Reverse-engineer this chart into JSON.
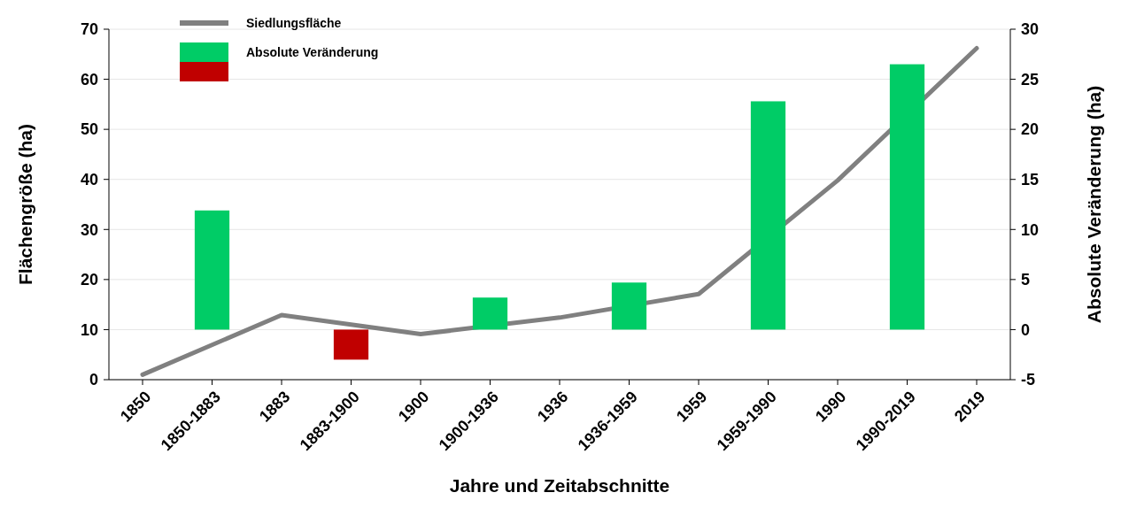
{
  "chart_data": {
    "type": "bar",
    "xlabel": "Jahre und Zeitabschnitte",
    "ylabel": "Flächengröße (ha)",
    "y2label": "Absolute  Veränderung (ha)",
    "categories": [
      "1850",
      "1850-1883",
      "1883",
      "1883-1900",
      "1900",
      "1900-1936",
      "1936",
      "1936-1959",
      "1959",
      "1959-1990",
      "1990",
      "1990-2019",
      "2019"
    ],
    "series": [
      {
        "name": "Siedlungsfläche",
        "type": "line",
        "color": "#808080",
        "values": [
          1.0,
          null,
          12.9,
          null,
          9.1,
          null,
          12.4,
          null,
          17.1,
          null,
          39.8,
          null,
          66.2
        ]
      },
      {
        "name": "Absolute Veränderung",
        "axis": "y2",
        "color": "#00cc66",
        "colors": [
          null,
          "#00cc66",
          null,
          "#c00000",
          null,
          "#00cc66",
          null,
          "#00cc66",
          null,
          "#00cc66",
          null,
          "#00cc66",
          null
        ],
        "values": [
          null,
          11.9,
          null,
          -3.0,
          null,
          3.2,
          null,
          4.7,
          null,
          22.8,
          null,
          26.5,
          null
        ]
      }
    ],
    "ylim": [
      0,
      70
    ],
    "yticks": [
      0,
      10,
      20,
      30,
      40,
      50,
      60,
      70
    ],
    "y2lim": [
      -5,
      30
    ],
    "y2ticks": [
      -5,
      0,
      5,
      10,
      15,
      20,
      25,
      30
    ],
    "grid": "y",
    "legend": "top left",
    "marker": "none",
    "line_style": "solid"
  }
}
